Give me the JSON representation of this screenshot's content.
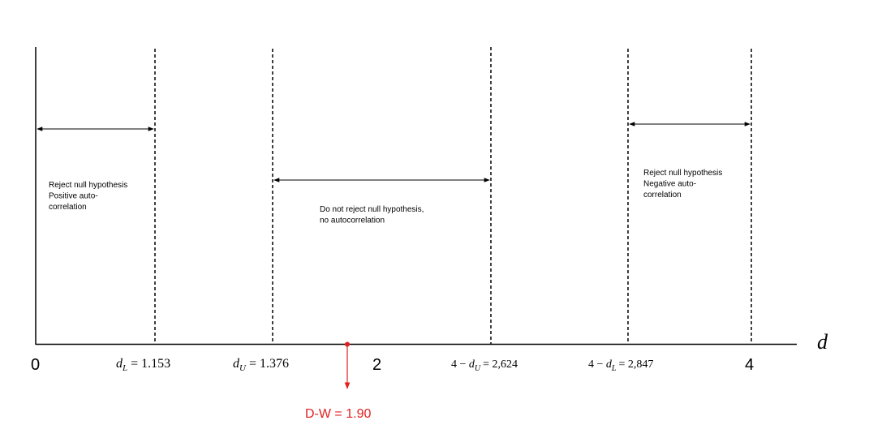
{
  "axis": {
    "variable": "d",
    "origin_label": "0",
    "mid_label": "2",
    "max_label": "4"
  },
  "critical_values": {
    "dL": {
      "symbol": "d",
      "sub": "L",
      "value_text": "= 1.153"
    },
    "dU": {
      "symbol": "d",
      "sub": "U",
      "value_text": "= 1.376"
    },
    "four_minus_dU": {
      "prefix": "4 − ",
      "symbol": "d",
      "sub": "U",
      "value_text": "= 2,624"
    },
    "four_minus_dL": {
      "prefix": "4 − ",
      "symbol": "d",
      "sub": "L",
      "value_text": "= 2,847"
    }
  },
  "regions": {
    "positive": {
      "lines": [
        "Reject null hypothesis",
        "Positive auto-",
        "correlation"
      ]
    },
    "none": {
      "lines": [
        "Do not reject null hypothesis,",
        "no autocorrelation"
      ]
    },
    "negative": {
      "lines": [
        "Reject null hypothesis",
        "Negative auto-",
        "correlation"
      ]
    }
  },
  "statistic": {
    "label": "D-W = 1.90",
    "value": 1.9,
    "color": "#e02020"
  },
  "colors": {
    "axis": "#000000",
    "marker": "#e02020"
  }
}
